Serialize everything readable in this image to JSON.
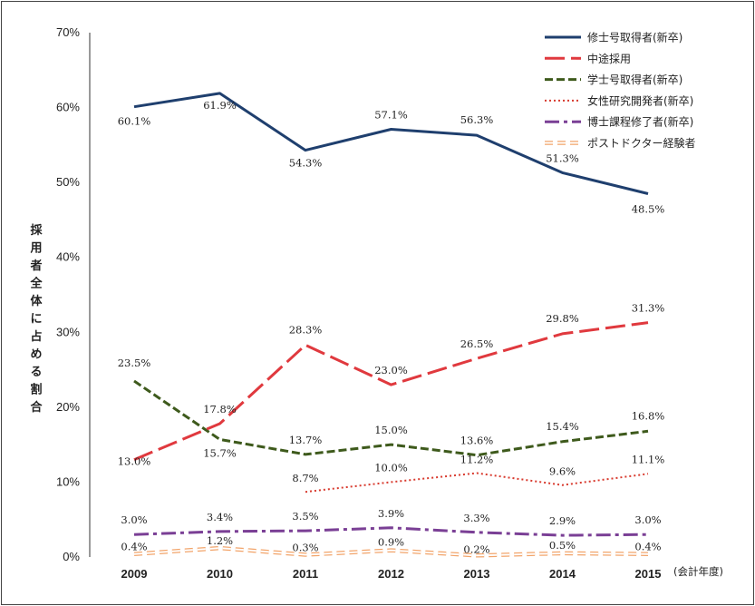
{
  "chart_data": {
    "type": "line",
    "title": "",
    "xlabel": "(会計年度)",
    "ylabel": "採用者全体に占める割合",
    "ylim": [
      0,
      70
    ],
    "yticks": [
      "0%",
      "10%",
      "20%",
      "30%",
      "40%",
      "50%",
      "60%",
      "70%"
    ],
    "x": [
      "2009",
      "2010",
      "2011",
      "2012",
      "2013",
      "2014",
      "2015"
    ],
    "grid": false,
    "legend_position": "top-right",
    "series": [
      {
        "name": "修士号取得者(新卒)",
        "color": "#1f3f6e",
        "dash": "solid",
        "values": [
          60.1,
          61.9,
          54.3,
          57.1,
          56.3,
          51.3,
          48.5
        ],
        "labels": [
          "60.1%",
          "61.9%",
          "54.3%",
          "57.1%",
          "56.3%",
          "51.3%",
          "48.5%"
        ]
      },
      {
        "name": "中途採用",
        "color": "#e0393e",
        "dash": "longdash",
        "values": [
          13.0,
          17.8,
          28.3,
          23.0,
          26.5,
          29.8,
          31.3
        ],
        "labels": [
          "13.0%",
          "17.8%",
          "28.3%",
          "23.0%",
          "26.5%",
          "29.8%",
          "31.3%"
        ]
      },
      {
        "name": "学士号取得者(新卒)",
        "color": "#3e5a1c",
        "dash": "dash",
        "values": [
          23.5,
          15.7,
          13.7,
          15.0,
          13.6,
          15.4,
          16.8
        ],
        "labels": [
          "23.5%",
          "15.7%",
          "13.7%",
          "15.0%",
          "13.6%",
          "15.4%",
          "16.8%"
        ]
      },
      {
        "name": "女性研究開発者(新卒)",
        "color": "#d83a2e",
        "dash": "dot",
        "values": [
          null,
          null,
          8.7,
          10.0,
          11.2,
          9.6,
          11.1
        ],
        "labels": [
          "",
          "",
          "8.7%",
          "10.0%",
          "11.2%",
          "9.6%",
          "11.1%"
        ]
      },
      {
        "name": "博士課程修了者(新卒)",
        "color": "#7a3f95",
        "dash": "dashdot",
        "values": [
          3.0,
          3.4,
          3.5,
          3.9,
          3.3,
          2.9,
          3.0
        ],
        "labels": [
          "3.0%",
          "3.4%",
          "3.5%",
          "3.9%",
          "3.3%",
          "2.9%",
          "3.0%"
        ]
      },
      {
        "name": "ポストドクター経験者",
        "color": "#f2a46a",
        "dash": "double",
        "values": [
          0.4,
          1.2,
          0.3,
          0.9,
          0.2,
          0.5,
          0.4
        ],
        "labels": [
          "0.4%",
          "1.2%",
          "0.3%",
          "0.9%",
          "0.2%",
          "0.5%",
          "0.4%"
        ]
      }
    ]
  }
}
